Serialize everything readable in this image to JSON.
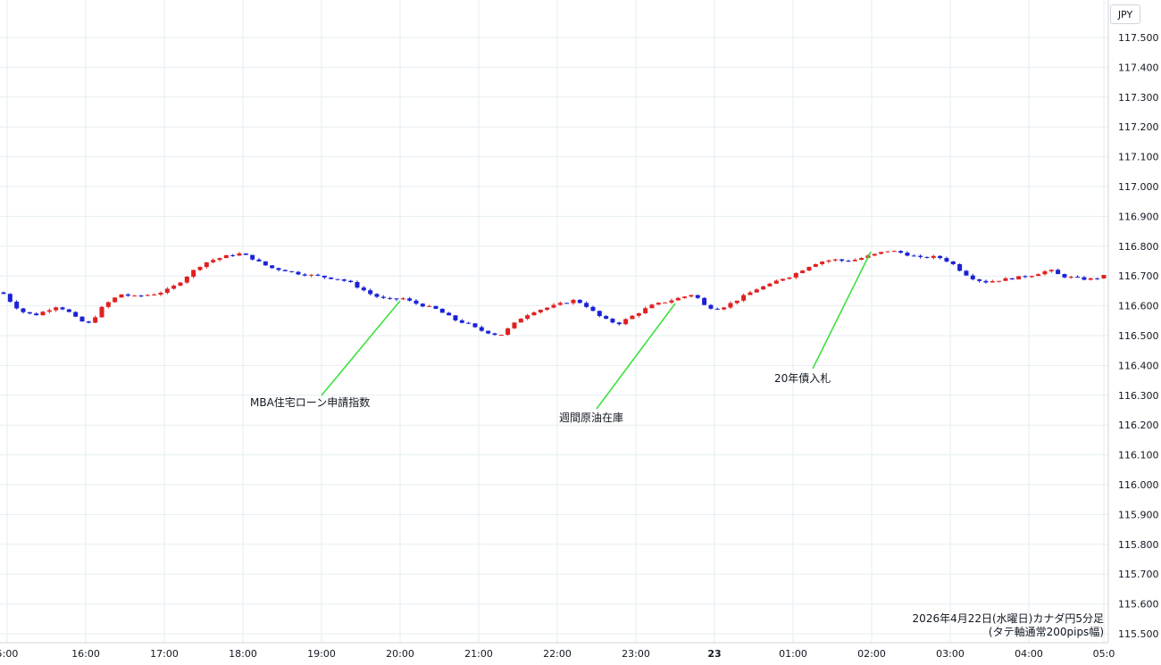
{
  "currency_label": "JPY",
  "caption_line1": "2026年4月22日(水曜日)カナダ円5分足",
  "caption_line2": "(タテ軸通常200pips幅)",
  "colors": {
    "up": "#e02020",
    "down": "#1a22d6",
    "grid": "#e6eef2",
    "annotation_line": "#3ee03e"
  },
  "chart_data": {
    "type": "candlestick",
    "interval": "5min",
    "x_ticks": [
      "5:00",
      "16:00",
      "17:00",
      "18:00",
      "19:00",
      "20:00",
      "21:00",
      "22:00",
      "23:00",
      "23",
      "01:00",
      "02:00",
      "03:00",
      "04:00",
      "05:0"
    ],
    "y_ticks": [
      "117.500",
      "117.400",
      "117.300",
      "117.200",
      "117.100",
      "117.000",
      "116.900",
      "116.800",
      "116.700",
      "116.600",
      "116.500",
      "116.400",
      "116.300",
      "116.200",
      "116.100",
      "116.000",
      "115.900",
      "115.800",
      "115.700",
      "115.600",
      "115.500"
    ],
    "ylim": [
      115.475,
      117.53
    ],
    "close_path": [
      116.64,
      116.6,
      116.575,
      116.57,
      116.585,
      116.6,
      116.58,
      116.55,
      116.54,
      116.59,
      116.62,
      116.64,
      116.63,
      116.635,
      116.64,
      116.65,
      116.67,
      116.7,
      116.73,
      116.75,
      116.76,
      116.77,
      116.775,
      116.76,
      116.74,
      116.725,
      116.72,
      116.71,
      116.705,
      116.7,
      116.695,
      116.69,
      116.68,
      116.66,
      116.64,
      116.625,
      116.62,
      116.625,
      116.61,
      116.6,
      116.59,
      116.57,
      116.55,
      116.54,
      116.52,
      116.51,
      116.5,
      116.53,
      116.56,
      116.58,
      116.59,
      116.6,
      116.61,
      116.62,
      116.6,
      116.57,
      116.55,
      116.54,
      116.56,
      116.58,
      116.6,
      116.61,
      116.62,
      116.63,
      116.64,
      116.6,
      116.59,
      116.6,
      116.62,
      116.64,
      116.66,
      116.67,
      116.69,
      116.7,
      116.72,
      116.74,
      116.75,
      116.755,
      116.75,
      116.755,
      116.765,
      116.775,
      116.785,
      116.78,
      116.77,
      116.76,
      116.765,
      116.76,
      116.74,
      116.71,
      116.69,
      116.68,
      116.685,
      116.69,
      116.695,
      116.7,
      116.71,
      116.72,
      116.7,
      116.695,
      116.69,
      116.69,
      116.7
    ],
    "series_colors": {
      "up": "#e02020",
      "down": "#1a22d6"
    },
    "annotations": [
      {
        "label": "MBA住宅ローン申請指数",
        "time": "20:00",
        "price": 116.62
      },
      {
        "label": "週間原油在庫",
        "time": "23:30",
        "price": 116.62
      },
      {
        "label": "20年債入札",
        "time": "02:00",
        "price": 116.785
      }
    ],
    "grid": true
  }
}
